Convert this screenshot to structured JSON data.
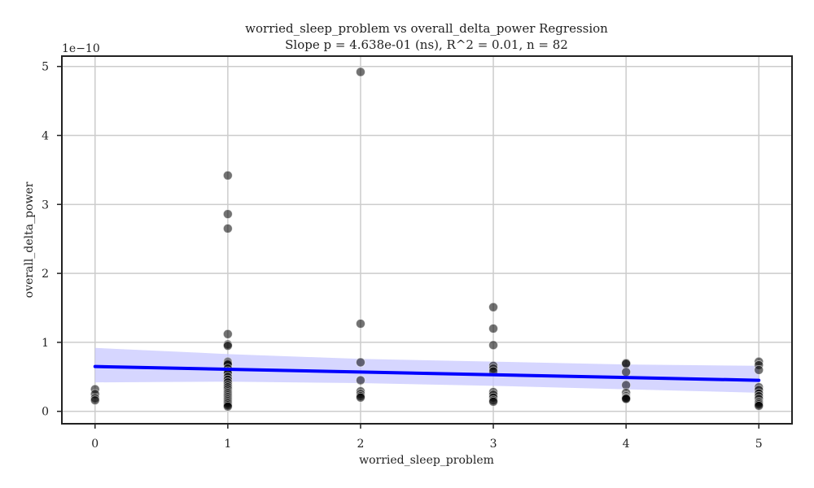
{
  "chart_data": {
    "type": "scatter",
    "title": "worried_sleep_problem vs overall_delta_power Regression",
    "subtitle": "Slope p = 4.638e-01 (ns), R^2 = 0.01, n = 82",
    "xlabel": "worried_sleep_problem",
    "ylabel": "overall_delta_power",
    "y_offset_label": "1e−10",
    "xlim": [
      -0.25,
      5.25
    ],
    "ylim": [
      -0.18,
      5.15
    ],
    "x_ticks": [
      0,
      1,
      2,
      3,
      4,
      5
    ],
    "x_tick_labels": [
      "0",
      "1",
      "2",
      "3",
      "4",
      "5"
    ],
    "y_ticks": [
      0,
      1,
      2,
      3,
      4,
      5
    ],
    "y_tick_labels": [
      "0",
      "1",
      "2",
      "3",
      "4",
      "5"
    ],
    "grid": true,
    "y_scale_factor": 1e-10,
    "points": [
      {
        "x": 0,
        "y": 0.32
      },
      {
        "x": 0,
        "y": 0.25
      },
      {
        "x": 0,
        "y": 0.19
      },
      {
        "x": 0,
        "y": 0.16
      },
      {
        "x": 1,
        "y": 3.42
      },
      {
        "x": 1,
        "y": 2.86
      },
      {
        "x": 1,
        "y": 2.65
      },
      {
        "x": 1,
        "y": 1.12
      },
      {
        "x": 1,
        "y": 0.97
      },
      {
        "x": 1,
        "y": 0.95
      },
      {
        "x": 1,
        "y": 0.72
      },
      {
        "x": 1,
        "y": 0.7
      },
      {
        "x": 1,
        "y": 0.68
      },
      {
        "x": 1,
        "y": 0.62
      },
      {
        "x": 1,
        "y": 0.58
      },
      {
        "x": 1,
        "y": 0.55
      },
      {
        "x": 1,
        "y": 0.5
      },
      {
        "x": 1,
        "y": 0.46
      },
      {
        "x": 1,
        "y": 0.42
      },
      {
        "x": 1,
        "y": 0.38
      },
      {
        "x": 1,
        "y": 0.35
      },
      {
        "x": 1,
        "y": 0.32
      },
      {
        "x": 1,
        "y": 0.29
      },
      {
        "x": 1,
        "y": 0.27
      },
      {
        "x": 1,
        "y": 0.25
      },
      {
        "x": 1,
        "y": 0.23
      },
      {
        "x": 1,
        "y": 0.21
      },
      {
        "x": 1,
        "y": 0.19
      },
      {
        "x": 1,
        "y": 0.17
      },
      {
        "x": 1,
        "y": 0.15
      },
      {
        "x": 1,
        "y": 0.13
      },
      {
        "x": 1,
        "y": 0.11
      },
      {
        "x": 1,
        "y": 0.09
      },
      {
        "x": 1,
        "y": 0.07
      },
      {
        "x": 2,
        "y": 4.92
      },
      {
        "x": 2,
        "y": 1.27
      },
      {
        "x": 2,
        "y": 0.71
      },
      {
        "x": 2,
        "y": 0.45
      },
      {
        "x": 2,
        "y": 0.29
      },
      {
        "x": 2,
        "y": 0.25
      },
      {
        "x": 2,
        "y": 0.22
      },
      {
        "x": 2,
        "y": 0.2
      },
      {
        "x": 3,
        "y": 1.51
      },
      {
        "x": 3,
        "y": 1.2
      },
      {
        "x": 3,
        "y": 0.96
      },
      {
        "x": 3,
        "y": 0.66
      },
      {
        "x": 3,
        "y": 0.62
      },
      {
        "x": 3,
        "y": 0.58
      },
      {
        "x": 3,
        "y": 0.28
      },
      {
        "x": 3,
        "y": 0.24
      },
      {
        "x": 3,
        "y": 0.2
      },
      {
        "x": 3,
        "y": 0.16
      },
      {
        "x": 3,
        "y": 0.14
      },
      {
        "x": 4,
        "y": 0.7
      },
      {
        "x": 4,
        "y": 0.69
      },
      {
        "x": 4,
        "y": 0.57
      },
      {
        "x": 4,
        "y": 0.38
      },
      {
        "x": 4,
        "y": 0.27
      },
      {
        "x": 4,
        "y": 0.22
      },
      {
        "x": 4,
        "y": 0.2
      },
      {
        "x": 4,
        "y": 0.19
      },
      {
        "x": 4,
        "y": 0.18
      },
      {
        "x": 5,
        "y": 0.72
      },
      {
        "x": 5,
        "y": 0.67
      },
      {
        "x": 5,
        "y": 0.6
      },
      {
        "x": 5,
        "y": 0.35
      },
      {
        "x": 5,
        "y": 0.31
      },
      {
        "x": 5,
        "y": 0.26
      },
      {
        "x": 5,
        "y": 0.22
      },
      {
        "x": 5,
        "y": 0.18
      },
      {
        "x": 5,
        "y": 0.14
      },
      {
        "x": 5,
        "y": 0.12
      },
      {
        "x": 5,
        "y": 0.1
      },
      {
        "x": 5,
        "y": 0.08
      }
    ],
    "regression_line": {
      "x": [
        0,
        5
      ],
      "y": [
        0.65,
        0.45
      ]
    },
    "confidence_band": {
      "x": [
        0,
        1,
        2,
        3,
        4,
        5
      ],
      "upper": [
        0.92,
        0.83,
        0.76,
        0.72,
        0.68,
        0.66
      ],
      "lower": [
        0.42,
        0.43,
        0.41,
        0.37,
        0.32,
        0.27
      ]
    },
    "colors": {
      "points": "#000000",
      "regression_line": "#0000ff",
      "confidence_band": "#c8c8ff",
      "grid": "#cccccc",
      "frame": "#222222"
    }
  }
}
